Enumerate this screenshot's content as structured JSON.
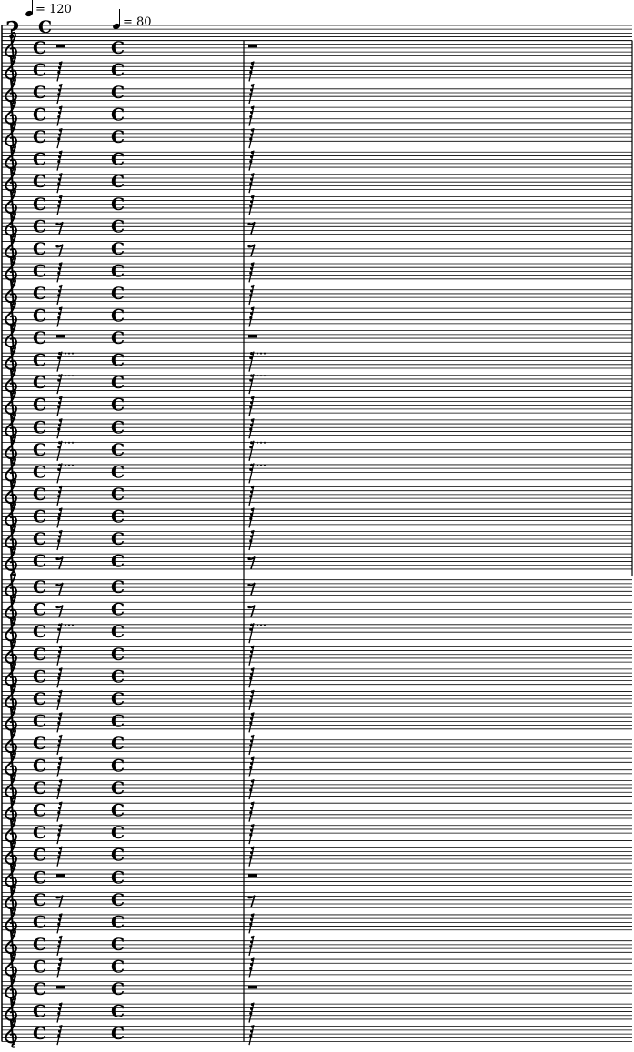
{
  "score": {
    "tempo_marks": [
      {
        "beat": "quarter-note",
        "text": "= 120"
      },
      {
        "beat": "quarter-note",
        "text": "= 80"
      }
    ],
    "time_signature": "C",
    "top_staff": {
      "clef": "bass"
    },
    "measures": 2,
    "staves": [
      {
        "clef": "treble",
        "rest": "whole"
      },
      {
        "clef": "treble",
        "rest": "32nd"
      },
      {
        "clef": "treble",
        "rest": "32nd"
      },
      {
        "clef": "treble",
        "rest": "32nd"
      },
      {
        "clef": "treble",
        "rest": "32nd"
      },
      {
        "clef": "treble",
        "rest": "32nd"
      },
      {
        "clef": "treble",
        "rest": "32nd"
      },
      {
        "clef": "treble",
        "rest": "32nd"
      },
      {
        "clef": "treble",
        "rest": "eighth"
      },
      {
        "clef": "treble",
        "rest": "eighth"
      },
      {
        "clef": "treble",
        "rest": "32nd"
      },
      {
        "clef": "treble",
        "rest": "32nd"
      },
      {
        "clef": "treble",
        "rest": "32nd"
      },
      {
        "clef": "treble",
        "rest": "whole"
      },
      {
        "clef": "treble",
        "rest": "16th-dotted"
      },
      {
        "clef": "treble",
        "rest": "16th-dotted"
      },
      {
        "clef": "treble",
        "rest": "32nd"
      },
      {
        "clef": "treble",
        "rest": "32nd"
      },
      {
        "clef": "treble",
        "rest": "16th-dotted"
      },
      {
        "clef": "treble",
        "rest": "16th-dotted"
      },
      {
        "clef": "treble",
        "rest": "32nd"
      },
      {
        "clef": "treble",
        "rest": "32nd"
      },
      {
        "clef": "treble",
        "rest": "32nd"
      },
      {
        "clef": "treble",
        "rest": "eighth"
      },
      {
        "clef": "treble",
        "rest": "eighth"
      },
      {
        "clef": "treble",
        "rest": "eighth"
      },
      {
        "clef": "treble",
        "rest": "16th-dotted"
      },
      {
        "clef": "treble",
        "rest": "32nd"
      },
      {
        "clef": "treble",
        "rest": "32nd"
      },
      {
        "clef": "treble",
        "rest": "32nd"
      },
      {
        "clef": "treble",
        "rest": "32nd"
      },
      {
        "clef": "treble",
        "rest": "32nd"
      },
      {
        "clef": "treble",
        "rest": "32nd"
      },
      {
        "clef": "treble",
        "rest": "32nd"
      },
      {
        "clef": "treble",
        "rest": "32nd"
      },
      {
        "clef": "treble",
        "rest": "32nd"
      },
      {
        "clef": "treble",
        "rest": "32nd"
      },
      {
        "clef": "treble",
        "rest": "whole"
      },
      {
        "clef": "treble",
        "rest": "eighth"
      },
      {
        "clef": "treble",
        "rest": "32nd"
      },
      {
        "clef": "treble",
        "rest": "32nd"
      },
      {
        "clef": "treble",
        "rest": "32nd"
      },
      {
        "clef": "treble",
        "rest": "whole"
      },
      {
        "clef": "treble",
        "rest": "32nd"
      },
      {
        "clef": "treble",
        "rest": "32nd"
      }
    ]
  },
  "colors": {
    "ink": "#000000",
    "paper": "#ffffff"
  }
}
